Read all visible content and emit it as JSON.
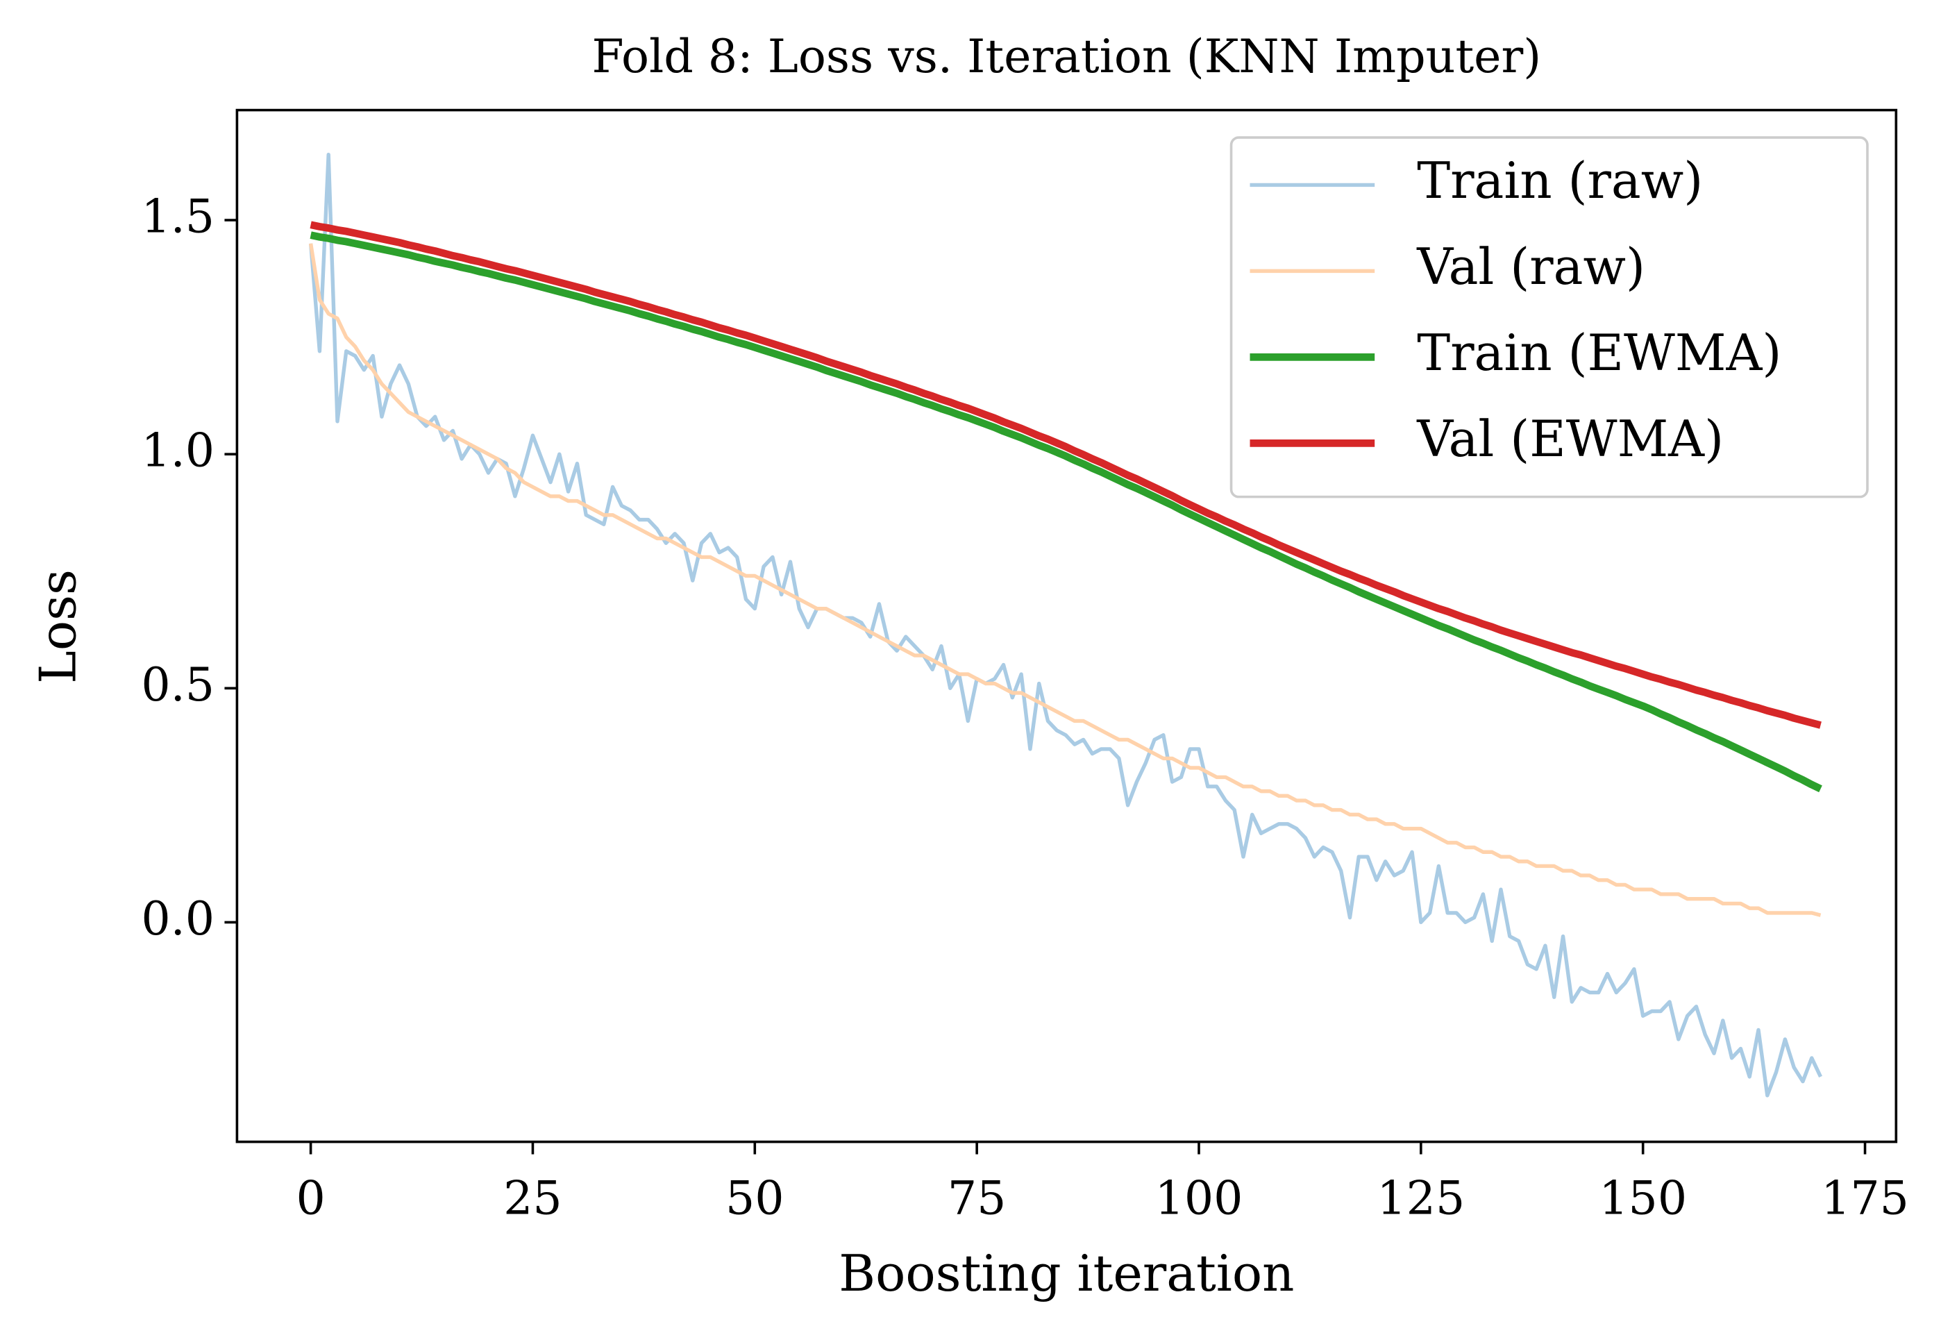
{
  "chart_data": {
    "type": "line",
    "title": "Fold 8: Loss vs. Iteration (KNN Imputer)",
    "x_label": "Boosting iteration",
    "y_label": "Loss",
    "xlim": [
      -8.3,
      178.5
    ],
    "ylim": [
      -0.469,
      1.735
    ],
    "xticks": [
      0,
      25,
      50,
      75,
      100,
      125,
      150,
      175
    ],
    "yticks": [
      {
        "value": 0,
        "label": "0.0"
      },
      0.5,
      {
        "value": 1,
        "label": "1.0"
      },
      1.5
    ],
    "legend": "upper right",
    "x": [
      0,
      1,
      2,
      3,
      4,
      5,
      6,
      7,
      8,
      9,
      10,
      11,
      12,
      13,
      14,
      15,
      16,
      17,
      18,
      19,
      20,
      21,
      22,
      23,
      24,
      25,
      26,
      27,
      28,
      29,
      30,
      31,
      32,
      33,
      34,
      35,
      36,
      37,
      38,
      39,
      40,
      41,
      42,
      43,
      44,
      45,
      46,
      47,
      48,
      49,
      50,
      51,
      52,
      53,
      54,
      55,
      56,
      57,
      58,
      59,
      60,
      61,
      62,
      63,
      64,
      65,
      66,
      67,
      68,
      69,
      70,
      71,
      72,
      73,
      74,
      75,
      76,
      77,
      78,
      79,
      80,
      81,
      82,
      83,
      84,
      85,
      86,
      87,
      88,
      89,
      90,
      91,
      92,
      93,
      94,
      95,
      96,
      97,
      98,
      99,
      100,
      101,
      102,
      103,
      104,
      105,
      106,
      107,
      108,
      109,
      110,
      111,
      112,
      113,
      114,
      115,
      116,
      117,
      118,
      119,
      120,
      121,
      122,
      123,
      124,
      125,
      126,
      127,
      128,
      129,
      130,
      131,
      132,
      133,
      134,
      135,
      136,
      137,
      138,
      139,
      140,
      141,
      142,
      143,
      144,
      145,
      146,
      147,
      148,
      149,
      150,
      151,
      152,
      153,
      154,
      155,
      156,
      157,
      158,
      159,
      160,
      161,
      162,
      163,
      164,
      165,
      166,
      167,
      168,
      169,
      170
    ],
    "series": [
      {
        "name": "Train (raw)",
        "color": "#a9cbe4",
        "width": 3,
        "values": [
          1.45,
          1.22,
          1.64,
          1.07,
          1.22,
          1.21,
          1.18,
          1.21,
          1.08,
          1.15,
          1.19,
          1.15,
          1.08,
          1.06,
          1.08,
          1.03,
          1.05,
          0.99,
          1.02,
          1.0,
          0.96,
          0.99,
          0.98,
          0.91,
          0.97,
          1.04,
          0.99,
          0.94,
          1.0,
          0.92,
          0.98,
          0.87,
          0.86,
          0.85,
          0.93,
          0.89,
          0.88,
          0.86,
          0.86,
          0.84,
          0.81,
          0.83,
          0.81,
          0.73,
          0.81,
          0.83,
          0.79,
          0.8,
          0.78,
          0.69,
          0.67,
          0.76,
          0.78,
          0.7,
          0.77,
          0.67,
          0.63,
          0.67,
          0.67,
          0.66,
          0.65,
          0.65,
          0.64,
          0.61,
          0.68,
          0.6,
          0.58,
          0.61,
          0.59,
          0.57,
          0.54,
          0.59,
          0.5,
          0.53,
          0.43,
          0.52,
          0.51,
          0.52,
          0.55,
          0.48,
          0.53,
          0.37,
          0.51,
          0.43,
          0.41,
          0.4,
          0.38,
          0.39,
          0.36,
          0.37,
          0.37,
          0.35,
          0.25,
          0.3,
          0.34,
          0.39,
          0.4,
          0.3,
          0.31,
          0.37,
          0.37,
          0.29,
          0.29,
          0.26,
          0.24,
          0.14,
          0.23,
          0.19,
          0.2,
          0.21,
          0.21,
          0.2,
          0.18,
          0.14,
          0.16,
          0.15,
          0.11,
          0.01,
          0.14,
          0.14,
          0.09,
          0.13,
          0.1,
          0.11,
          0.15,
          0.0,
          0.02,
          0.12,
          0.02,
          0.02,
          0.0,
          0.01,
          0.06,
          -0.04,
          0.07,
          -0.03,
          -0.04,
          -0.09,
          -0.1,
          -0.05,
          -0.16,
          -0.03,
          -0.17,
          -0.14,
          -0.15,
          -0.15,
          -0.11,
          -0.15,
          -0.13,
          -0.1,
          -0.2,
          -0.19,
          -0.19,
          -0.17,
          -0.25,
          -0.2,
          -0.18,
          -0.24,
          -0.28,
          -0.21,
          -0.29,
          -0.27,
          -0.33,
          -0.23,
          -0.37,
          -0.32,
          -0.25,
          -0.31,
          -0.34,
          -0.29,
          -0.33
        ]
      },
      {
        "name": "Val (raw)",
        "color": "#ffd2ab",
        "width": 3,
        "values": [
          1.45,
          1.33,
          1.3,
          1.29,
          1.25,
          1.23,
          1.2,
          1.18,
          1.15,
          1.13,
          1.11,
          1.09,
          1.08,
          1.07,
          1.06,
          1.05,
          1.04,
          1.03,
          1.02,
          1.01,
          1.0,
          0.99,
          0.97,
          0.96,
          0.94,
          0.93,
          0.92,
          0.91,
          0.91,
          0.9,
          0.9,
          0.89,
          0.88,
          0.87,
          0.87,
          0.86,
          0.85,
          0.84,
          0.83,
          0.82,
          0.82,
          0.81,
          0.8,
          0.79,
          0.78,
          0.78,
          0.77,
          0.76,
          0.75,
          0.74,
          0.74,
          0.73,
          0.72,
          0.71,
          0.7,
          0.69,
          0.68,
          0.67,
          0.67,
          0.66,
          0.65,
          0.64,
          0.63,
          0.62,
          0.61,
          0.6,
          0.59,
          0.58,
          0.57,
          0.57,
          0.56,
          0.55,
          0.54,
          0.53,
          0.53,
          0.52,
          0.51,
          0.51,
          0.5,
          0.49,
          0.49,
          0.48,
          0.47,
          0.46,
          0.45,
          0.44,
          0.43,
          0.43,
          0.42,
          0.41,
          0.4,
          0.39,
          0.39,
          0.38,
          0.37,
          0.36,
          0.35,
          0.35,
          0.34,
          0.33,
          0.33,
          0.32,
          0.31,
          0.31,
          0.3,
          0.29,
          0.29,
          0.28,
          0.28,
          0.27,
          0.27,
          0.26,
          0.26,
          0.25,
          0.25,
          0.24,
          0.24,
          0.23,
          0.23,
          0.22,
          0.22,
          0.21,
          0.21,
          0.2,
          0.2,
          0.2,
          0.19,
          0.18,
          0.17,
          0.17,
          0.16,
          0.16,
          0.15,
          0.15,
          0.14,
          0.14,
          0.13,
          0.13,
          0.12,
          0.12,
          0.12,
          0.11,
          0.11,
          0.1,
          0.1,
          0.09,
          0.09,
          0.08,
          0.08,
          0.07,
          0.07,
          0.07,
          0.06,
          0.06,
          0.06,
          0.05,
          0.05,
          0.05,
          0.05,
          0.04,
          0.04,
          0.04,
          0.03,
          0.03,
          0.02,
          0.02,
          0.02,
          0.02,
          0.02,
          0.02,
          0.015
        ]
      },
      {
        "name": "Train (EWMA)",
        "color": "#2ca02c",
        "width": 6,
        "values": [
          1.468,
          1.464,
          1.461,
          1.457,
          1.454,
          1.45,
          1.446,
          1.442,
          1.438,
          1.434,
          1.43,
          1.426,
          1.421,
          1.417,
          1.412,
          1.408,
          1.404,
          1.399,
          1.395,
          1.39,
          1.386,
          1.381,
          1.376,
          1.372,
          1.367,
          1.362,
          1.357,
          1.352,
          1.347,
          1.342,
          1.337,
          1.332,
          1.326,
          1.321,
          1.316,
          1.311,
          1.306,
          1.3,
          1.295,
          1.289,
          1.284,
          1.278,
          1.273,
          1.267,
          1.262,
          1.256,
          1.25,
          1.245,
          1.239,
          1.234,
          1.228,
          1.222,
          1.216,
          1.21,
          1.204,
          1.198,
          1.192,
          1.186,
          1.179,
          1.173,
          1.167,
          1.161,
          1.155,
          1.148,
          1.142,
          1.136,
          1.13,
          1.123,
          1.117,
          1.11,
          1.104,
          1.097,
          1.091,
          1.084,
          1.078,
          1.071,
          1.064,
          1.057,
          1.049,
          1.042,
          1.035,
          1.027,
          1.019,
          1.012,
          1.004,
          0.996,
          0.987,
          0.979,
          0.97,
          0.962,
          0.953,
          0.944,
          0.935,
          0.927,
          0.918,
          0.909,
          0.9,
          0.891,
          0.881,
          0.872,
          0.863,
          0.854,
          0.845,
          0.836,
          0.827,
          0.818,
          0.809,
          0.8,
          0.792,
          0.783,
          0.774,
          0.765,
          0.757,
          0.748,
          0.74,
          0.731,
          0.723,
          0.715,
          0.706,
          0.698,
          0.69,
          0.682,
          0.674,
          0.666,
          0.658,
          0.65,
          0.642,
          0.634,
          0.627,
          0.619,
          0.611,
          0.603,
          0.596,
          0.588,
          0.581,
          0.573,
          0.565,
          0.558,
          0.55,
          0.543,
          0.535,
          0.528,
          0.52,
          0.513,
          0.505,
          0.498,
          0.491,
          0.484,
          0.476,
          0.469,
          0.462,
          0.454,
          0.445,
          0.437,
          0.428,
          0.42,
          0.411,
          0.403,
          0.394,
          0.386,
          0.377,
          0.368,
          0.359,
          0.35,
          0.341,
          0.332,
          0.323,
          0.313,
          0.304,
          0.294,
          0.285
        ]
      },
      {
        "name": "Val (EWMA)",
        "color": "#d62728",
        "width": 6,
        "values": [
          1.49,
          1.486,
          1.483,
          1.479,
          1.476,
          1.472,
          1.468,
          1.464,
          1.46,
          1.456,
          1.452,
          1.447,
          1.443,
          1.438,
          1.434,
          1.429,
          1.424,
          1.42,
          1.415,
          1.411,
          1.406,
          1.401,
          1.396,
          1.392,
          1.387,
          1.382,
          1.377,
          1.372,
          1.367,
          1.362,
          1.357,
          1.352,
          1.346,
          1.341,
          1.336,
          1.331,
          1.326,
          1.32,
          1.315,
          1.309,
          1.304,
          1.298,
          1.293,
          1.287,
          1.282,
          1.276,
          1.27,
          1.265,
          1.259,
          1.254,
          1.248,
          1.242,
          1.236,
          1.23,
          1.224,
          1.218,
          1.212,
          1.206,
          1.199,
          1.193,
          1.187,
          1.181,
          1.175,
          1.168,
          1.162,
          1.156,
          1.15,
          1.143,
          1.137,
          1.13,
          1.124,
          1.117,
          1.111,
          1.104,
          1.098,
          1.091,
          1.084,
          1.077,
          1.069,
          1.062,
          1.055,
          1.047,
          1.039,
          1.032,
          1.024,
          1.016,
          1.007,
          0.999,
          0.99,
          0.982,
          0.973,
          0.964,
          0.955,
          0.947,
          0.938,
          0.929,
          0.92,
          0.911,
          0.901,
          0.892,
          0.883,
          0.874,
          0.866,
          0.857,
          0.849,
          0.84,
          0.832,
          0.823,
          0.815,
          0.806,
          0.798,
          0.79,
          0.782,
          0.774,
          0.766,
          0.758,
          0.75,
          0.743,
          0.735,
          0.728,
          0.72,
          0.713,
          0.706,
          0.698,
          0.691,
          0.684,
          0.677,
          0.67,
          0.664,
          0.657,
          0.65,
          0.644,
          0.637,
          0.631,
          0.624,
          0.618,
          0.612,
          0.606,
          0.6,
          0.594,
          0.588,
          0.582,
          0.576,
          0.571,
          0.565,
          0.559,
          0.553,
          0.547,
          0.542,
          0.536,
          0.53,
          0.524,
          0.519,
          0.513,
          0.508,
          0.502,
          0.496,
          0.491,
          0.485,
          0.48,
          0.474,
          0.469,
          0.463,
          0.458,
          0.452,
          0.447,
          0.442,
          0.436,
          0.431,
          0.426,
          0.421
        ]
      }
    ]
  }
}
